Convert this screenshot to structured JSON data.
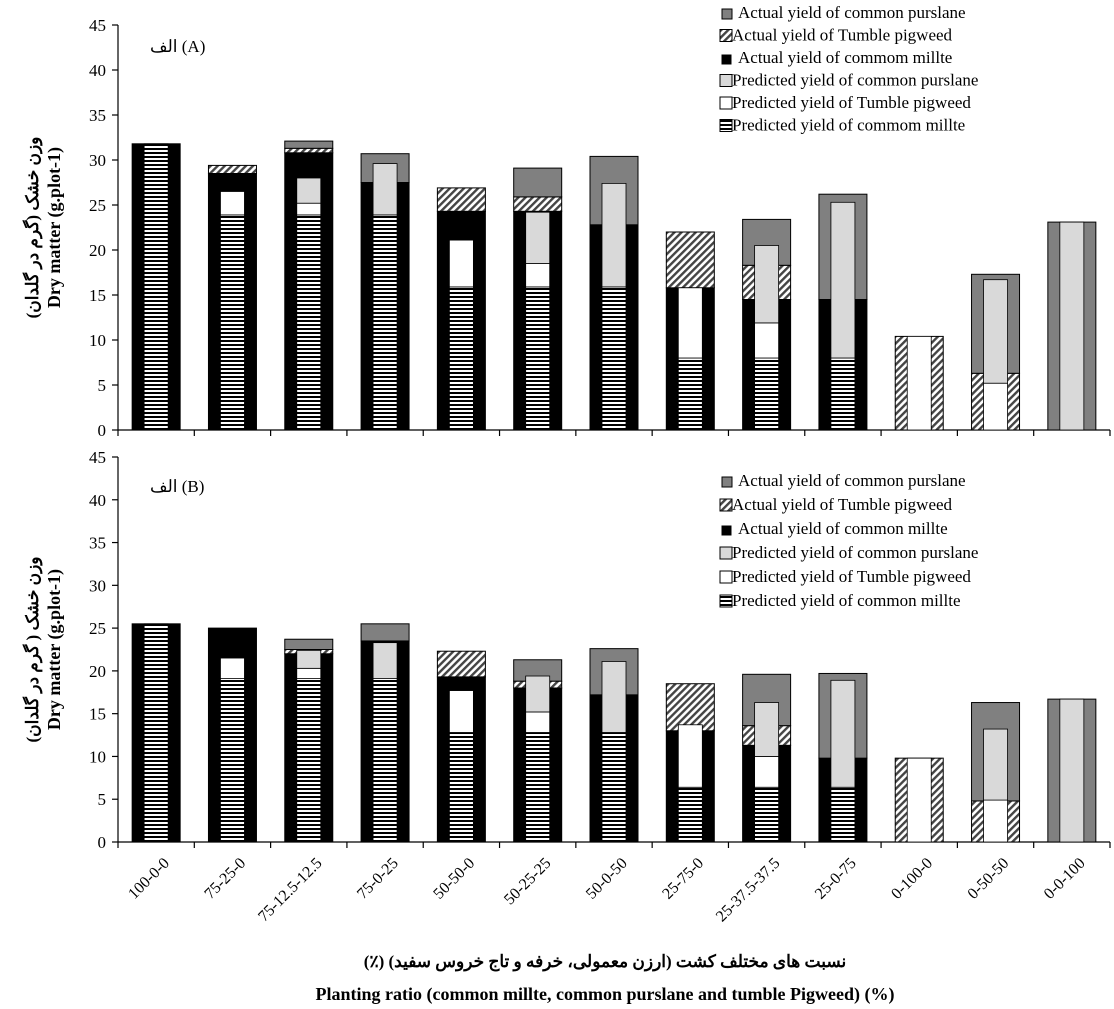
{
  "colors": {
    "actual_purslane": "#808080",
    "actual_pigweed_hatch": "#444444",
    "actual_millet": "#000000",
    "predicted_purslane": "#d9d9d9",
    "predicted_pigweed": "#ffffff",
    "predicted_millet_stripes": "#000000"
  },
  "chart_data": [
    {
      "type": "bar",
      "panel_tag": "الف (A)",
      "categories": [
        "100-0-0",
        "75-25-0",
        "75-12.5-12.5",
        "75-0-25",
        "50-50-0",
        "50-25-25",
        "50-0-50",
        "25-75-0",
        "25-37.5-37.5",
        "25-0-75",
        "0-100-0",
        "0-50-50",
        "0-0-100"
      ],
      "ylim": [
        0,
        45
      ],
      "yticks": [
        0,
        5,
        10,
        15,
        20,
        25,
        30,
        35,
        40,
        45
      ],
      "ylabel": "Dry matter (g.plot-1)",
      "ylabel_fa": "وزن خشک (گرم در گلدان)",
      "legend": [
        "Actual yield of common purslane",
        "Actual yield of Tumble pigweed",
        "Actual yield of commom millte",
        "Predicted yield of common purslane",
        "Predicted yield of Tumble pigweed",
        "Predicted yield of commom millte"
      ],
      "actual": {
        "millet": [
          31.8,
          28.5,
          30.8,
          27.5,
          24.3,
          24.3,
          22.8,
          15.8,
          14.5,
          14.5,
          0,
          0,
          0
        ],
        "pigweed": [
          0,
          0.9,
          0.5,
          0,
          2.6,
          1.6,
          0,
          6.2,
          3.8,
          0,
          10.4,
          6.3,
          0
        ],
        "purslane": [
          0,
          0,
          0.8,
          3.2,
          0,
          3.2,
          7.6,
          0,
          5.1,
          11.7,
          0,
          11.0,
          23.1
        ]
      },
      "predicted": {
        "millet": [
          31.8,
          23.9,
          23.9,
          23.9,
          15.9,
          15.9,
          15.9,
          8.0,
          8.0,
          8.0,
          0,
          0,
          0
        ],
        "pigweed": [
          0,
          2.6,
          1.3,
          0,
          5.2,
          2.6,
          0,
          7.8,
          3.9,
          0,
          10.4,
          5.2,
          0
        ],
        "purslane": [
          0,
          0,
          2.8,
          5.7,
          0,
          5.7,
          11.5,
          0,
          8.6,
          17.3,
          0,
          11.5,
          23.1
        ]
      }
    },
    {
      "type": "bar",
      "panel_tag": "الف (B)",
      "categories": [
        "100-0-0",
        "75-25-0",
        "75-12.5-12.5",
        "75-0-25",
        "50-50-0",
        "50-25-25",
        "50-0-50",
        "25-75-0",
        "25-37.5-37.5",
        "25-0-75",
        "0-100-0",
        "0-50-50",
        "0-0-100"
      ],
      "ylim": [
        0,
        45
      ],
      "yticks": [
        0,
        5,
        10,
        15,
        20,
        25,
        30,
        35,
        40,
        45
      ],
      "ylabel": "Dry matter (g.plot-1)",
      "ylabel_fa": "وزن خشک ( گرم در گلدان)",
      "legend": [
        "Actual yield of common purslane",
        "Actual yield of Tumble pigweed",
        "Actual yield of common millte",
        "Predicted yield of common purslane",
        "Predicted yield of Tumble pigweed",
        "Predicted yield of common millte"
      ],
      "actual": {
        "millet": [
          25.5,
          25.0,
          22.0,
          23.5,
          19.3,
          18.0,
          17.2,
          13.0,
          11.3,
          9.8,
          0,
          0,
          0
        ],
        "pigweed": [
          0,
          0,
          0.5,
          0,
          3.0,
          0.8,
          0,
          5.5,
          2.3,
          0,
          9.8,
          4.8,
          0
        ],
        "purslane": [
          0,
          0,
          1.2,
          2.0,
          0,
          2.5,
          5.4,
          0,
          6.0,
          9.9,
          0,
          11.5,
          16.7
        ]
      },
      "predicted": {
        "millet": [
          25.5,
          19.1,
          19.1,
          19.1,
          12.8,
          12.8,
          12.8,
          6.4,
          6.4,
          6.4,
          0,
          0,
          0
        ],
        "pigweed": [
          0,
          2.4,
          1.2,
          0,
          4.9,
          2.4,
          0,
          7.3,
          3.6,
          0,
          9.8,
          4.9,
          0
        ],
        "purslane": [
          0,
          0,
          2.1,
          4.2,
          0,
          4.2,
          8.3,
          0,
          6.3,
          12.5,
          0,
          8.3,
          16.7
        ]
      }
    }
  ],
  "xlabel_fa": "نسبت های مختلف کشت (ارزن معمولی، خرفه و تاج خروس سفید) (٪)",
  "xlabel": "Planting ratio (common millte, common purslane  and tumble Pigweed) (%)"
}
